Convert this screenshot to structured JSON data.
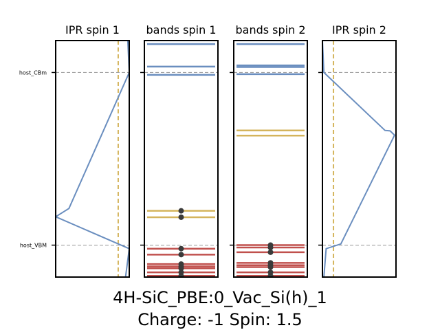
{
  "colors": {
    "host": "#6a8ebf",
    "defect": "#d4b45c",
    "occupied": "#c0504d",
    "electron": "#3b3b3b",
    "ref_line": "#a0a0a0",
    "frame": "#000000"
  },
  "figure": {
    "title_line1": "4H-SiC_PBE:0_Vac_Si(h)_1",
    "title_line2": "Charge: -1 Spin: 1.5"
  },
  "chart_data": {
    "type": "line",
    "energy_axis": {
      "ylim": [
        0.0,
        1.0
      ],
      "ref_lines": [
        {
          "label": "host_CBm",
          "y": 0.865
        },
        {
          "label": "host_VBM",
          "y": 0.135
        }
      ]
    },
    "panels": [
      {
        "key": "ipr1",
        "kind": "ipr",
        "title": "IPR spin 1",
        "xlim": [
          0,
          1
        ],
        "threshold_x": 0.85,
        "curve": [
          [
            0.98,
            1.0
          ],
          [
            1.0,
            0.865
          ],
          [
            0.18,
            0.29
          ],
          [
            0.0,
            0.255
          ],
          [
            1.0,
            0.12
          ],
          [
            0.95,
            0.0
          ]
        ]
      },
      {
        "key": "bands1",
        "kind": "bands",
        "title": "bands spin 1",
        "levels": [
          {
            "y": 0.985,
            "kind": "host"
          },
          {
            "y": 0.89,
            "kind": "host"
          },
          {
            "y": 0.855,
            "kind": "host"
          },
          {
            "y": 0.28,
            "kind": "defect",
            "electrons": 1
          },
          {
            "y": 0.253,
            "kind": "defect",
            "electrons": 1
          },
          {
            "y": 0.12,
            "kind": "occupied",
            "electrons": 1
          },
          {
            "y": 0.095,
            "kind": "occupied",
            "electrons": 1
          },
          {
            "y": 0.055,
            "kind": "occupied",
            "electrons": 1
          },
          {
            "y": 0.045,
            "kind": "occupied",
            "electrons": 1
          },
          {
            "y": 0.037,
            "kind": "occupied",
            "electrons": 1
          },
          {
            "y": 0.02,
            "kind": "occupied",
            "electrons": 1
          },
          {
            "y": 0.005,
            "kind": "occupied",
            "electrons": 1
          }
        ]
      },
      {
        "key": "bands2",
        "kind": "bands",
        "title": "bands spin 2",
        "levels": [
          {
            "y": 0.985,
            "kind": "host"
          },
          {
            "y": 0.895,
            "kind": "host"
          },
          {
            "y": 0.888,
            "kind": "host"
          },
          {
            "y": 0.858,
            "kind": "host"
          },
          {
            "y": 0.62,
            "kind": "defect"
          },
          {
            "y": 0.598,
            "kind": "defect"
          },
          {
            "y": 0.135,
            "kind": "occupied",
            "electrons": 1
          },
          {
            "y": 0.125,
            "kind": "occupied",
            "electrons": 1
          },
          {
            "y": 0.105,
            "kind": "occupied",
            "electrons": 1
          },
          {
            "y": 0.06,
            "kind": "occupied",
            "electrons": 1
          },
          {
            "y": 0.05,
            "kind": "occupied",
            "electrons": 1
          },
          {
            "y": 0.042,
            "kind": "occupied",
            "electrons": 1
          },
          {
            "y": 0.02,
            "kind": "occupied",
            "electrons": 1
          },
          {
            "y": 0.005,
            "kind": "occupied",
            "electrons": 1
          }
        ]
      },
      {
        "key": "ipr2",
        "kind": "ipr",
        "title": "IPR spin 2",
        "xlim": [
          0,
          1
        ],
        "threshold_x": 0.15,
        "curve": [
          [
            0.0,
            1.0
          ],
          [
            0.02,
            0.865
          ],
          [
            0.85,
            0.62
          ],
          [
            0.92,
            0.618
          ],
          [
            0.98,
            0.6
          ],
          [
            0.25,
            0.14
          ],
          [
            0.05,
            0.12
          ],
          [
            0.02,
            0.0
          ]
        ]
      }
    ]
  }
}
